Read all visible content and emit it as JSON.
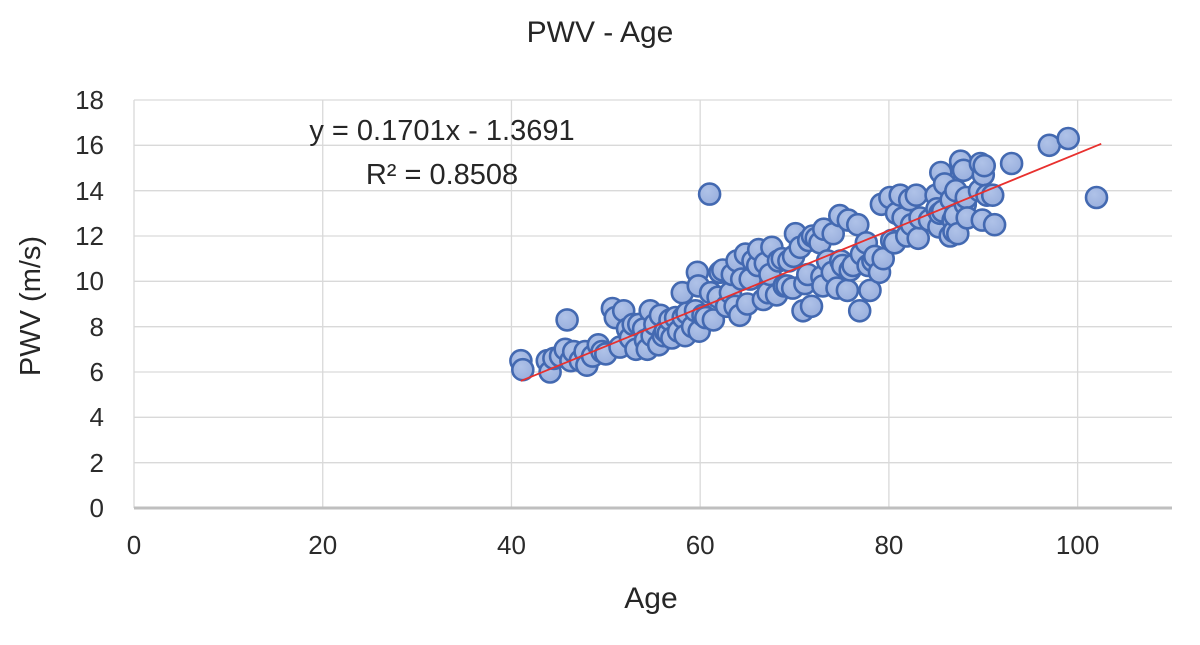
{
  "chart": {
    "title": "PWV - Age",
    "annotation": {
      "line1": "y = 0.1701x - 1.3691",
      "line2": "R² = 0.8508"
    },
    "x_axis_title": "Age",
    "y_axis_title": "PWV (m/s)"
  },
  "colors": {
    "marker_fill": "#97ADDC",
    "marker_fill_highlight": "#AFC2E8",
    "marker_stroke": "#4369B1",
    "trendline": "#E8302E",
    "gridline": "#D9D9D9",
    "axis_line": "#BFBFBF",
    "text": "#262626"
  },
  "chart_data": {
    "type": "scatter",
    "title": "PWV - Age",
    "xlabel": "Age",
    "ylabel": "PWV (m/s)",
    "xlim": [
      0,
      110
    ],
    "ylim": [
      0,
      18
    ],
    "x_ticks": [
      0,
      20,
      40,
      60,
      80,
      100
    ],
    "y_ticks": [
      0,
      2,
      4,
      6,
      8,
      10,
      12,
      14,
      16,
      18
    ],
    "grid": true,
    "legend": "none",
    "trendline": {
      "type": "linear",
      "slope": 0.1701,
      "intercept": -1.3691,
      "r_squared": 0.8508,
      "x_start": 41,
      "x_end": 102.5
    },
    "points": [
      [
        41.0,
        6.5
      ],
      [
        41.2,
        6.1
      ],
      [
        43.8,
        6.5
      ],
      [
        44.1,
        6.0
      ],
      [
        44.5,
        6.6
      ],
      [
        45.2,
        6.7
      ],
      [
        45.7,
        7.0
      ],
      [
        45.9,
        8.3
      ],
      [
        46.3,
        6.5
      ],
      [
        46.6,
        6.9
      ],
      [
        47.3,
        6.5
      ],
      [
        47.8,
        6.9
      ],
      [
        48.0,
        6.3
      ],
      [
        48.6,
        6.7
      ],
      [
        49.2,
        7.2
      ],
      [
        49.6,
        6.9
      ],
      [
        50.0,
        6.8
      ],
      [
        50.7,
        8.8
      ],
      [
        51.0,
        8.4
      ],
      [
        51.5,
        7.1
      ],
      [
        51.9,
        8.7
      ],
      [
        52.3,
        7.9
      ],
      [
        52.6,
        7.5
      ],
      [
        52.9,
        8.1
      ],
      [
        53.2,
        7.0
      ],
      [
        53.5,
        8.1
      ],
      [
        54.0,
        7.9
      ],
      [
        54.2,
        7.4
      ],
      [
        54.4,
        7.0
      ],
      [
        54.7,
        8.7
      ],
      [
        54.9,
        7.6
      ],
      [
        55.2,
        8.1
      ],
      [
        55.6,
        7.2
      ],
      [
        55.8,
        8.5
      ],
      [
        56.1,
        7.6
      ],
      [
        56.3,
        7.8
      ],
      [
        56.6,
        7.7
      ],
      [
        56.8,
        8.3
      ],
      [
        57.0,
        7.5
      ],
      [
        57.4,
        8.4
      ],
      [
        57.7,
        7.8
      ],
      [
        58.1,
        9.5
      ],
      [
        58.2,
        8.4
      ],
      [
        58.4,
        7.6
      ],
      [
        58.6,
        8.6
      ],
      [
        59.2,
        8.0
      ],
      [
        59.5,
        8.7
      ],
      [
        59.7,
        10.4
      ],
      [
        59.8,
        9.8
      ],
      [
        59.9,
        7.8
      ],
      [
        60.3,
        8.5
      ],
      [
        60.6,
        8.4
      ],
      [
        61.0,
        13.85
      ],
      [
        61.1,
        9.5
      ],
      [
        61.4,
        8.3
      ],
      [
        61.9,
        9.3
      ],
      [
        62.1,
        10.4
      ],
      [
        62.4,
        10.5
      ],
      [
        62.8,
        8.9
      ],
      [
        63.2,
        9.5
      ],
      [
        63.4,
        10.3
      ],
      [
        63.7,
        8.9
      ],
      [
        63.9,
        10.9
      ],
      [
        64.2,
        8.5
      ],
      [
        64.4,
        10.1
      ],
      [
        64.8,
        11.2
      ],
      [
        65.0,
        9.0
      ],
      [
        65.3,
        10.1
      ],
      [
        65.6,
        10.9
      ],
      [
        66.1,
        10.7
      ],
      [
        66.2,
        11.4
      ],
      [
        66.7,
        9.2
      ],
      [
        66.9,
        10.8
      ],
      [
        67.2,
        9.5
      ],
      [
        67.4,
        10.3
      ],
      [
        67.6,
        11.5
      ],
      [
        68.1,
        9.4
      ],
      [
        68.3,
        10.9
      ],
      [
        68.7,
        11.0
      ],
      [
        68.9,
        9.8
      ],
      [
        69.2,
        9.8
      ],
      [
        69.4,
        10.9
      ],
      [
        69.8,
        9.7
      ],
      [
        69.9,
        11.1
      ],
      [
        70.1,
        12.1
      ],
      [
        70.6,
        11.5
      ],
      [
        70.9,
        8.7
      ],
      [
        71.1,
        9.9
      ],
      [
        71.4,
        10.3
      ],
      [
        71.5,
        11.8
      ],
      [
        71.8,
        8.9
      ],
      [
        71.9,
        12.0
      ],
      [
        72.3,
        11.9
      ],
      [
        72.7,
        11.7
      ],
      [
        72.9,
        10.2
      ],
      [
        73.0,
        9.8
      ],
      [
        73.1,
        12.3
      ],
      [
        73.5,
        10.9
      ],
      [
        74.0,
        10.4
      ],
      [
        74.1,
        12.1
      ],
      [
        74.5,
        9.7
      ],
      [
        74.8,
        12.9
      ],
      [
        74.9,
        10.9
      ],
      [
        75.1,
        10.7
      ],
      [
        75.6,
        9.6
      ],
      [
        75.7,
        12.7
      ],
      [
        75.9,
        10.5
      ],
      [
        76.2,
        10.7
      ],
      [
        76.7,
        12.5
      ],
      [
        76.9,
        8.7
      ],
      [
        77.1,
        11.2
      ],
      [
        77.6,
        11.7
      ],
      [
        77.8,
        10.7
      ],
      [
        78.0,
        9.6
      ],
      [
        78.3,
        10.9
      ],
      [
        78.5,
        11.1
      ],
      [
        79.0,
        10.4
      ],
      [
        79.2,
        13.4
      ],
      [
        79.4,
        11.0
      ],
      [
        80.1,
        13.7
      ],
      [
        80.3,
        11.8
      ],
      [
        80.6,
        11.7
      ],
      [
        80.8,
        13.0
      ],
      [
        81.2,
        13.8
      ],
      [
        81.5,
        12.8
      ],
      [
        81.9,
        12.0
      ],
      [
        82.2,
        13.6
      ],
      [
        82.4,
        12.5
      ],
      [
        82.9,
        13.8
      ],
      [
        83.1,
        11.9
      ],
      [
        83.3,
        12.8
      ],
      [
        84.3,
        12.7
      ],
      [
        85.0,
        13.8
      ],
      [
        85.1,
        13.2
      ],
      [
        85.3,
        12.4
      ],
      [
        85.4,
        13.0
      ],
      [
        85.5,
        14.8
      ],
      [
        85.7,
        13.1
      ],
      [
        85.9,
        14.3
      ],
      [
        86.5,
        12.0
      ],
      [
        86.6,
        13.6
      ],
      [
        86.8,
        12.7
      ],
      [
        86.9,
        12.2
      ],
      [
        87.0,
        12.9
      ],
      [
        87.1,
        14.0
      ],
      [
        87.3,
        12.1
      ],
      [
        87.6,
        15.3
      ],
      [
        87.9,
        14.9
      ],
      [
        88.1,
        13.4
      ],
      [
        88.2,
        13.7
      ],
      [
        88.3,
        12.8
      ],
      [
        89.6,
        14.0
      ],
      [
        89.7,
        15.2
      ],
      [
        89.9,
        12.7
      ],
      [
        90.0,
        14.7
      ],
      [
        90.1,
        15.1
      ],
      [
        90.4,
        13.8
      ],
      [
        91.0,
        13.8
      ],
      [
        91.2,
        12.5
      ],
      [
        93.0,
        15.2
      ],
      [
        97.0,
        16.0
      ],
      [
        99.0,
        16.3
      ],
      [
        102.0,
        13.7
      ]
    ]
  }
}
